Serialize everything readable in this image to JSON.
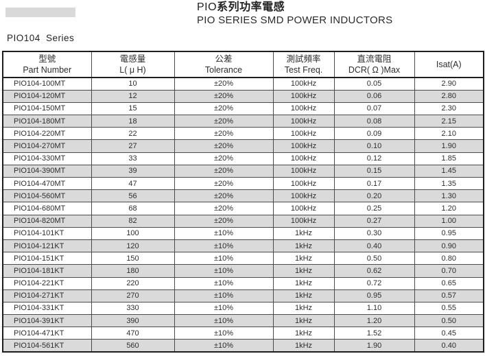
{
  "page": {
    "title_prefix": "PIO",
    "title_zh": "系列功率電感",
    "title_en": "PIO SERIES SMD POWER INDUCTORS",
    "series_label": "PIO104 Series"
  },
  "colors": {
    "row_shade": "#dadada",
    "gray_bar": "#d9d9d9",
    "border_dark": "#1c1c1c"
  },
  "table": {
    "headers": [
      {
        "zh": "型號",
        "en": "Part Number"
      },
      {
        "zh": "電感量",
        "en": "L( μ H)"
      },
      {
        "zh": "公差",
        "en": "Tolerance"
      },
      {
        "zh": "測試頻率",
        "en": "Test Freq."
      },
      {
        "zh": "直流電阻",
        "en": "DCR( Ω )Max"
      },
      {
        "zh": "",
        "en": "Isat(A)"
      }
    ],
    "rows": [
      [
        "PIO104-100MT",
        "10",
        "±20%",
        "100kHz",
        "0.05",
        "2.90"
      ],
      [
        "PIO104-120MT",
        "12",
        "±20%",
        "100kHz",
        "0.06",
        "2.80"
      ],
      [
        "PIO104-150MT",
        "15",
        "±20%",
        "100kHz",
        "0.07",
        "2.30"
      ],
      [
        "PIO104-180MT",
        "18",
        "±20%",
        "100kHz",
        "0.08",
        "2.15"
      ],
      [
        "PIO104-220MT",
        "22",
        "±20%",
        "100kHz",
        "0.09",
        "2.10"
      ],
      [
        "PIO104-270MT",
        "27",
        "±20%",
        "100kHz",
        "0.10",
        "1.90"
      ],
      [
        "PIO104-330MT",
        "33",
        "±20%",
        "100kHz",
        "0.12",
        "1.85"
      ],
      [
        "PIO104-390MT",
        "39",
        "±20%",
        "100kHz",
        "0.15",
        "1.45"
      ],
      [
        "PIO104-470MT",
        "47",
        "±20%",
        "100kHz",
        "0.17",
        "1.35"
      ],
      [
        "PIO104-560MT",
        "56",
        "±20%",
        "100kHz",
        "0.20",
        "1.30"
      ],
      [
        "PIO104-680MT",
        "68",
        "±20%",
        "100kHz",
        "0.25",
        "1.20"
      ],
      [
        "PIO104-820MT",
        "82",
        "±20%",
        "100kHz",
        "0.27",
        "1.00"
      ],
      [
        "PIO104-101KT",
        "100",
        "±10%",
        "1kHz",
        "0.30",
        "0.95"
      ],
      [
        "PIO104-121KT",
        "120",
        "±10%",
        "1kHz",
        "0.40",
        "0.90"
      ],
      [
        "PIO104-151KT",
        "150",
        "±10%",
        "1kHz",
        "0.50",
        "0.80"
      ],
      [
        "PIO104-181KT",
        "180",
        "±10%",
        "1kHz",
        "0.62",
        "0.70"
      ],
      [
        "PIO104-221KT",
        "220",
        "±10%",
        "1kHz",
        "0.72",
        "0.65"
      ],
      [
        "PIO104-271KT",
        "270",
        "±10%",
        "1kHz",
        "0.95",
        "0.57"
      ],
      [
        "PIO104-331KT",
        "330",
        "±10%",
        "1kHz",
        "1.10",
        "0.55"
      ],
      [
        "PIO104-391KT",
        "390",
        "±10%",
        "1kHz",
        "1.20",
        "0.50"
      ],
      [
        "PIO104-471KT",
        "470",
        "±10%",
        "1kHz",
        "1.52",
        "0.45"
      ],
      [
        "PIO104-561KT",
        "560",
        "±10%",
        "1kHz",
        "1.90",
        "0.40"
      ]
    ]
  }
}
